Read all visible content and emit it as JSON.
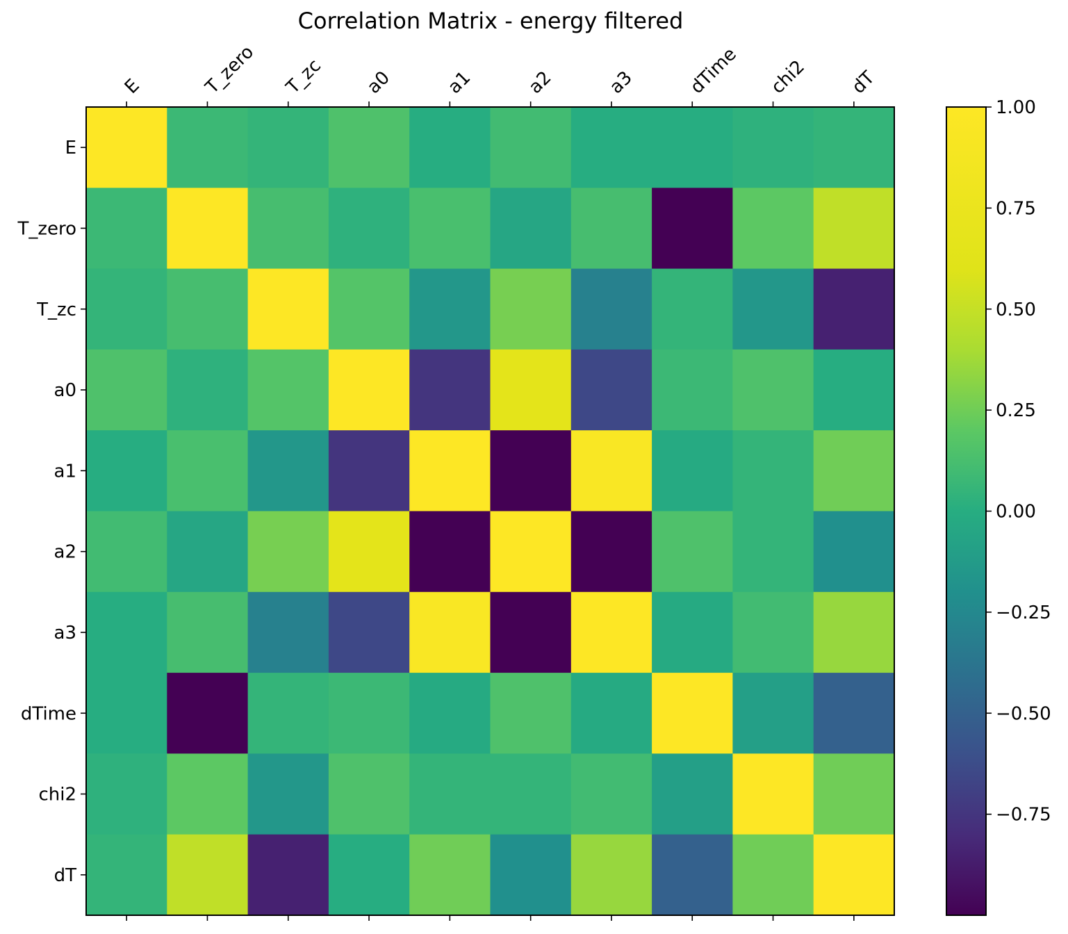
{
  "chart_data": {
    "type": "heatmap",
    "title": "Correlation Matrix - energy filtered",
    "labels": [
      "E",
      "T_zero",
      "T_zc",
      "a0",
      "a1",
      "a2",
      "a3",
      "dTime",
      "chi2",
      "dT"
    ],
    "matrix": [
      [
        1.0,
        0.08,
        0.05,
        0.15,
        0.0,
        0.1,
        0.0,
        0.0,
        0.03,
        0.05
      ],
      [
        0.08,
        1.0,
        0.12,
        0.03,
        0.13,
        -0.05,
        0.12,
        -1.0,
        0.2,
        0.48
      ],
      [
        0.05,
        0.12,
        1.0,
        0.17,
        -0.15,
        0.27,
        -0.3,
        0.05,
        -0.15,
        -0.85
      ],
      [
        0.15,
        0.03,
        0.17,
        1.0,
        -0.75,
        0.65,
        -0.65,
        0.08,
        0.15,
        0.0
      ],
      [
        0.0,
        0.13,
        -0.15,
        -0.75,
        1.0,
        -1.0,
        0.95,
        -0.02,
        0.05,
        0.25
      ],
      [
        0.1,
        -0.05,
        0.27,
        0.65,
        -1.0,
        1.0,
        -1.0,
        0.15,
        0.05,
        -0.2
      ],
      [
        0.0,
        0.12,
        -0.3,
        -0.65,
        0.95,
        -1.0,
        1.0,
        -0.02,
        0.1,
        0.35
      ],
      [
        0.0,
        -1.0,
        0.05,
        0.08,
        -0.02,
        0.15,
        -0.02,
        1.0,
        -0.1,
        -0.5
      ],
      [
        0.03,
        0.2,
        -0.15,
        0.15,
        0.05,
        0.05,
        0.1,
        -0.1,
        1.0,
        0.25
      ],
      [
        0.05,
        0.48,
        -0.85,
        0.0,
        0.25,
        -0.2,
        0.35,
        -0.5,
        0.25,
        1.0
      ]
    ],
    "colormap": "viridis",
    "vmin": -1.0,
    "vmax": 1.0,
    "colorbar": {
      "ticks": [
        1.0,
        0.75,
        0.5,
        0.25,
        0.0,
        -0.25,
        -0.5,
        -0.75
      ],
      "tick_labels": [
        "1.00",
        "0.75",
        "0.50",
        "0.25",
        "0.00",
        "−0.25",
        "−0.50",
        "−0.75"
      ]
    },
    "grid": false,
    "x_tick_position": "top",
    "x_tick_rotation_deg": 45
  }
}
